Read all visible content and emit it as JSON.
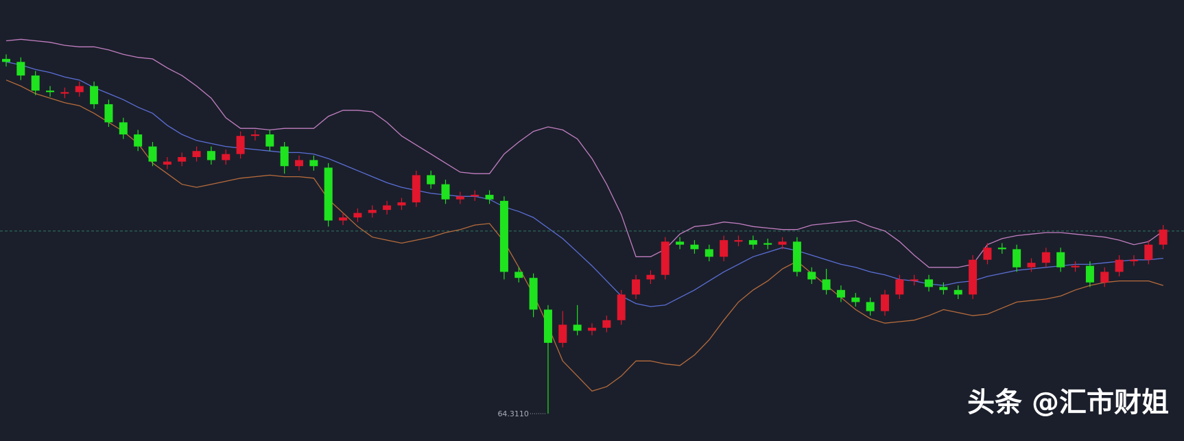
{
  "chart_data": {
    "type": "candlestick",
    "ylim": [
      64.13,
      67.05
    ],
    "up_color": "#e2162c",
    "down_color": "#1fe31f",
    "open": [
      66.66,
      66.64,
      66.55,
      66.45,
      66.43,
      66.44,
      66.48,
      66.36,
      66.24,
      66.16,
      66.08,
      65.96,
      65.98,
      66.01,
      66.05,
      65.99,
      66.03,
      66.15,
      66.16,
      66.08,
      65.95,
      65.99,
      65.94,
      65.59,
      65.61,
      65.64,
      65.66,
      65.69,
      65.71,
      65.89,
      65.83,
      65.73,
      65.75,
      65.76,
      65.72,
      65.25,
      65.21,
      65.0,
      64.78,
      64.9,
      64.86,
      64.88,
      64.93,
      65.1,
      65.2,
      65.23,
      65.45,
      65.43,
      65.4,
      65.35,
      65.45,
      65.46,
      65.44,
      65.43,
      65.45,
      65.25,
      65.2,
      65.13,
      65.08,
      65.05,
      64.99,
      65.1,
      65.19,
      65.2,
      65.15,
      65.13,
      65.1,
      65.33,
      65.41,
      65.4,
      65.28,
      65.31,
      65.38,
      65.28,
      65.29,
      65.18,
      65.25,
      65.32,
      65.33,
      65.43
    ],
    "high": [
      66.69,
      66.67,
      66.58,
      66.48,
      66.47,
      66.51,
      66.51,
      66.39,
      66.27,
      66.19,
      66.11,
      66.01,
      66.04,
      66.08,
      66.08,
      66.06,
      66.18,
      66.19,
      66.19,
      66.11,
      66.02,
      66.02,
      65.97,
      65.64,
      65.67,
      65.69,
      65.72,
      65.74,
      65.92,
      65.92,
      65.86,
      65.78,
      65.79,
      65.79,
      65.75,
      65.28,
      65.24,
      65.03,
      64.99,
      65.03,
      64.91,
      64.96,
      65.13,
      65.23,
      65.26,
      65.48,
      65.48,
      65.46,
      65.43,
      65.49,
      65.49,
      65.49,
      65.47,
      65.48,
      65.48,
      65.28,
      65.27,
      65.16,
      65.11,
      65.08,
      65.13,
      65.23,
      65.23,
      65.23,
      65.18,
      65.16,
      65.36,
      65.44,
      65.44,
      65.43,
      65.34,
      65.41,
      65.41,
      65.32,
      65.32,
      65.28,
      65.36,
      65.36,
      65.46,
      65.56
    ],
    "low": [
      66.61,
      66.52,
      66.42,
      66.41,
      66.4,
      66.41,
      66.33,
      66.21,
      66.13,
      66.05,
      65.95,
      65.93,
      65.95,
      65.98,
      65.96,
      65.96,
      66.0,
      66.12,
      66.05,
      65.9,
      65.92,
      65.92,
      65.55,
      65.56,
      65.58,
      65.61,
      65.63,
      65.66,
      65.68,
      65.8,
      65.7,
      65.7,
      65.72,
      65.7,
      65.2,
      65.18,
      64.95,
      64.311,
      64.75,
      64.83,
      64.83,
      64.85,
      64.9,
      65.07,
      65.17,
      65.2,
      65.4,
      65.37,
      65.32,
      65.32,
      65.42,
      65.4,
      65.4,
      65.4,
      65.22,
      65.17,
      65.1,
      65.05,
      65.02,
      64.96,
      64.96,
      65.07,
      65.16,
      65.12,
      65.1,
      65.07,
      65.07,
      65.3,
      65.37,
      65.25,
      65.25,
      65.28,
      65.25,
      65.25,
      65.15,
      65.15,
      65.22,
      65.29,
      65.3,
      65.4
    ],
    "close": [
      66.64,
      66.55,
      66.45,
      66.44,
      66.44,
      66.48,
      66.36,
      66.24,
      66.16,
      66.08,
      65.98,
      65.98,
      66.01,
      66.05,
      65.99,
      66.03,
      66.15,
      66.16,
      66.08,
      65.95,
      65.99,
      65.95,
      65.59,
      65.61,
      65.64,
      65.66,
      65.69,
      65.71,
      65.89,
      65.83,
      65.73,
      65.75,
      65.76,
      65.73,
      65.25,
      65.21,
      65.0,
      64.78,
      64.9,
      64.86,
      64.88,
      64.93,
      65.1,
      65.2,
      65.23,
      65.45,
      65.43,
      65.4,
      65.35,
      65.46,
      65.46,
      65.43,
      65.43,
      65.45,
      65.25,
      65.2,
      65.13,
      65.08,
      65.05,
      64.99,
      65.1,
      65.2,
      65.2,
      65.15,
      65.13,
      65.1,
      65.33,
      65.41,
      65.4,
      65.28,
      65.31,
      65.38,
      65.28,
      65.29,
      65.18,
      65.25,
      65.33,
      65.33,
      65.43,
      65.53
    ],
    "bands": [
      {
        "color": "#c27fc2",
        "values": [
          66.78,
          66.79,
          66.78,
          66.77,
          66.75,
          66.74,
          66.74,
          66.72,
          66.69,
          66.67,
          66.66,
          66.6,
          66.55,
          66.48,
          66.4,
          66.27,
          66.2,
          66.2,
          66.19,
          66.2,
          66.2,
          66.2,
          66.28,
          66.32,
          66.32,
          66.31,
          66.24,
          66.15,
          66.09,
          66.03,
          65.97,
          65.91,
          65.9,
          65.9,
          66.03,
          66.11,
          66.18,
          66.21,
          66.19,
          66.13,
          66.0,
          65.83,
          65.63,
          65.35,
          65.35,
          65.4,
          65.5,
          65.55,
          65.56,
          65.58,
          65.57,
          65.55,
          65.54,
          65.53,
          65.53,
          65.56,
          65.57,
          65.58,
          65.59,
          65.55,
          65.52,
          65.45,
          65.36,
          65.28,
          65.28,
          65.28,
          65.3,
          65.43,
          65.47,
          65.49,
          65.5,
          65.51,
          65.51,
          65.5,
          65.49,
          65.48,
          65.46,
          65.43,
          65.45,
          65.52
        ]
      },
      {
        "color": "#5b6fd8",
        "values": [
          66.64,
          66.62,
          66.59,
          66.57,
          66.54,
          66.52,
          66.47,
          66.43,
          66.39,
          66.34,
          66.3,
          66.22,
          66.16,
          66.12,
          66.1,
          66.08,
          66.07,
          66.06,
          66.05,
          66.04,
          66.04,
          66.03,
          66.0,
          65.96,
          65.92,
          65.88,
          65.84,
          65.81,
          65.79,
          65.77,
          65.76,
          65.75,
          65.75,
          65.73,
          65.68,
          65.65,
          65.61,
          65.54,
          65.47,
          65.38,
          65.29,
          65.19,
          65.09,
          65.04,
          65.02,
          65.03,
          65.08,
          65.13,
          65.19,
          65.25,
          65.3,
          65.35,
          65.38,
          65.41,
          65.39,
          65.36,
          65.33,
          65.3,
          65.28,
          65.25,
          65.23,
          65.2,
          65.19,
          65.17,
          65.16,
          65.18,
          65.19,
          65.22,
          65.24,
          65.26,
          65.27,
          65.28,
          65.29,
          65.3,
          65.3,
          65.31,
          65.32,
          65.33,
          65.33,
          65.34
        ]
      },
      {
        "color": "#b86c3c",
        "values": [
          66.52,
          66.48,
          66.43,
          66.4,
          66.37,
          66.35,
          66.3,
          66.24,
          66.18,
          66.1,
          65.97,
          65.9,
          65.83,
          65.81,
          65.83,
          65.85,
          65.87,
          65.88,
          65.89,
          65.88,
          65.88,
          65.87,
          65.73,
          65.64,
          65.55,
          65.48,
          65.46,
          65.44,
          65.46,
          65.48,
          65.51,
          65.53,
          65.56,
          65.57,
          65.45,
          65.28,
          65.1,
          64.89,
          64.66,
          64.56,
          64.46,
          64.49,
          64.56,
          64.66,
          64.66,
          64.64,
          64.63,
          64.7,
          64.8,
          64.93,
          65.05,
          65.13,
          65.19,
          65.27,
          65.32,
          65.24,
          65.16,
          65.08,
          65.0,
          64.94,
          64.91,
          64.92,
          64.93,
          64.96,
          65.0,
          64.98,
          64.96,
          64.97,
          65.01,
          65.05,
          65.06,
          65.07,
          65.09,
          65.13,
          65.16,
          65.18,
          65.19,
          65.19,
          65.19,
          65.16
        ]
      }
    ],
    "price_line": {
      "value": 65.52,
      "color": "#2f7a62"
    },
    "low_label": {
      "value": 64.311,
      "label": "64.3110"
    },
    "watermark": "头条 @汇市财姐"
  }
}
